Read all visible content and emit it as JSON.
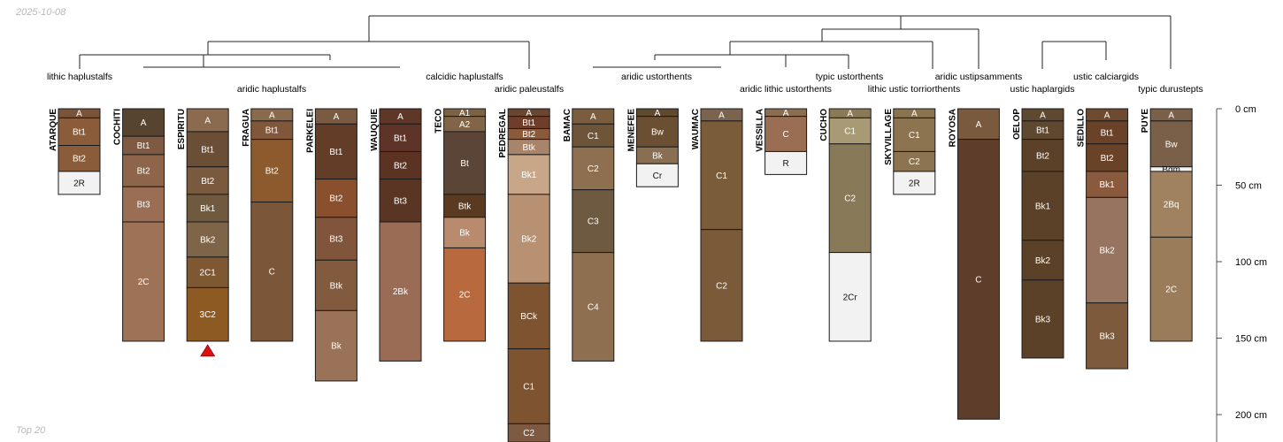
{
  "date_label": "2025-10-08",
  "footer_label": "Top 20",
  "chart_data": {
    "type": "soil-profile-sketch",
    "title": "",
    "depth_axis": {
      "unit": "cm",
      "range": [
        0,
        220
      ],
      "ticks": [
        {
          "value": 0,
          "label": "0 cm"
        },
        {
          "value": 50,
          "label": "50 cm"
        },
        {
          "value": 100,
          "label": "100 cm"
        },
        {
          "value": 150,
          "label": "150 cm"
        },
        {
          "value": 200,
          "label": "200 cm"
        }
      ]
    },
    "profiles": [
      {
        "name": "ATARQUE",
        "horizons": [
          {
            "name": "A",
            "top": 0,
            "bottom": 6,
            "color": "#7a5438"
          },
          {
            "name": "Bt1",
            "top": 6,
            "bottom": 24,
            "color": "#8a5c3a"
          },
          {
            "name": "Bt2",
            "top": 24,
            "bottom": 41,
            "color": "#8a5c3a"
          },
          {
            "name": "2R",
            "top": 41,
            "bottom": 56,
            "color": "#f2f2f2"
          }
        ]
      },
      {
        "name": "COCHITI",
        "horizons": [
          {
            "name": "A",
            "top": 0,
            "bottom": 18,
            "color": "#574430"
          },
          {
            "name": "Bt1",
            "top": 18,
            "bottom": 30,
            "color": "#7e5a43"
          },
          {
            "name": "Bt2",
            "top": 30,
            "bottom": 51,
            "color": "#8e654a"
          },
          {
            "name": "Bt3",
            "top": 51,
            "bottom": 74,
            "color": "#9a6e55"
          },
          {
            "name": "2C",
            "top": 74,
            "bottom": 152,
            "color": "#9d7256"
          }
        ]
      },
      {
        "name": "ESPIRITU",
        "marker": true,
        "horizons": [
          {
            "name": "A",
            "top": 0,
            "bottom": 15,
            "color": "#8a6b4f"
          },
          {
            "name": "Bt1",
            "top": 15,
            "bottom": 38,
            "color": "#6a4e35"
          },
          {
            "name": "Bt2",
            "top": 38,
            "bottom": 56,
            "color": "#7a5a3e"
          },
          {
            "name": "Bk1",
            "top": 56,
            "bottom": 74,
            "color": "#6f5a40"
          },
          {
            "name": "Bk2",
            "top": 74,
            "bottom": 97,
            "color": "#7e6549"
          },
          {
            "name": "2C1",
            "top": 97,
            "bottom": 117,
            "color": "#7e5833"
          },
          {
            "name": "3C2",
            "top": 117,
            "bottom": 152,
            "color": "#8e5a24"
          }
        ]
      },
      {
        "name": "FRAGUA",
        "horizons": [
          {
            "name": "A",
            "top": 0,
            "bottom": 8,
            "color": "#8a6a4c"
          },
          {
            "name": "Bt1",
            "top": 8,
            "bottom": 20,
            "color": "#80573a"
          },
          {
            "name": "Bt2",
            "top": 20,
            "bottom": 61,
            "color": "#8c5a2c"
          },
          {
            "name": "C",
            "top": 61,
            "bottom": 152,
            "color": "#7c5638"
          }
        ]
      },
      {
        "name": "PARKELEI",
        "horizons": [
          {
            "name": "A",
            "top": 0,
            "bottom": 10,
            "color": "#7a5a40"
          },
          {
            "name": "Bt1",
            "top": 10,
            "bottom": 46,
            "color": "#643d28"
          },
          {
            "name": "Bt2",
            "top": 46,
            "bottom": 71,
            "color": "#8a4f2c"
          },
          {
            "name": "Bt3",
            "top": 71,
            "bottom": 99,
            "color": "#80553b"
          },
          {
            "name": "Btk",
            "top": 99,
            "bottom": 132,
            "color": "#825b3f"
          },
          {
            "name": "Bk",
            "top": 132,
            "bottom": 178,
            "color": "#9a7257"
          }
        ]
      },
      {
        "name": "WAUQUIE",
        "horizons": [
          {
            "name": "A",
            "top": 0,
            "bottom": 10,
            "color": "#5e3728"
          },
          {
            "name": "Bt1",
            "top": 10,
            "bottom": 28,
            "color": "#5f3428"
          },
          {
            "name": "Bt2",
            "top": 28,
            "bottom": 46,
            "color": "#5c3322"
          },
          {
            "name": "Bt3",
            "top": 46,
            "bottom": 74,
            "color": "#5a3524"
          },
          {
            "name": "2Bk",
            "top": 74,
            "bottom": 165,
            "color": "#9a6c56"
          }
        ]
      },
      {
        "name": "TECO",
        "horizons": [
          {
            "name": "A1",
            "top": 0,
            "bottom": 5,
            "color": "#7c6245"
          },
          {
            "name": "A2",
            "top": 5,
            "bottom": 15,
            "color": "#826548"
          },
          {
            "name": "Bt",
            "top": 15,
            "bottom": 56,
            "color": "#5b4536"
          },
          {
            "name": "Btk",
            "top": 56,
            "bottom": 71,
            "color": "#5b3a22"
          },
          {
            "name": "Bk",
            "top": 71,
            "bottom": 91,
            "color": "#b88a6e"
          },
          {
            "name": "2C",
            "top": 91,
            "bottom": 152,
            "color": "#b86a3e"
          }
        ]
      },
      {
        "name": "PEDREGAL",
        "horizons": [
          {
            "name": "A",
            "top": 0,
            "bottom": 5,
            "color": "#6a4630"
          },
          {
            "name": "Bt1",
            "top": 5,
            "bottom": 13,
            "color": "#6e3e2a"
          },
          {
            "name": "Bt2",
            "top": 13,
            "bottom": 20,
            "color": "#8a5a3a"
          },
          {
            "name": "Btk",
            "top": 20,
            "bottom": 30,
            "color": "#a8846a"
          },
          {
            "name": "Bk1",
            "top": 30,
            "bottom": 56,
            "color": "#c8a688"
          },
          {
            "name": "Bk2",
            "top": 56,
            "bottom": 114,
            "color": "#b89072"
          },
          {
            "name": "BCk",
            "top": 114,
            "bottom": 157,
            "color": "#7e5330"
          },
          {
            "name": "C1",
            "top": 157,
            "bottom": 206,
            "color": "#7e5330"
          },
          {
            "name": "C2",
            "top": 206,
            "bottom": 220,
            "color": "#7e5a42"
          }
        ]
      },
      {
        "name": "BAMAC",
        "horizons": [
          {
            "name": "A",
            "top": 0,
            "bottom": 10,
            "color": "#7a5c3e"
          },
          {
            "name": "C1",
            "top": 10,
            "bottom": 25,
            "color": "#6e5438"
          },
          {
            "name": "C2",
            "top": 25,
            "bottom": 53,
            "color": "#8e7050"
          },
          {
            "name": "C3",
            "top": 53,
            "bottom": 94,
            "color": "#6e5a40"
          },
          {
            "name": "C4",
            "top": 94,
            "bottom": 165,
            "color": "#8e7050"
          }
        ]
      },
      {
        "name": "MENEFEE",
        "horizons": [
          {
            "name": "A",
            "top": 0,
            "bottom": 5,
            "color": "#5e4a30"
          },
          {
            "name": "Bw",
            "top": 5,
            "bottom": 25,
            "color": "#6a4f33"
          },
          {
            "name": "Bk",
            "top": 25,
            "bottom": 36,
            "color": "#8a6e52"
          },
          {
            "name": "Cr",
            "top": 36,
            "bottom": 51,
            "color": "#f2f2f2"
          }
        ]
      },
      {
        "name": "WAUMAC",
        "horizons": [
          {
            "name": "A",
            "top": 0,
            "bottom": 8,
            "color": "#7a6450"
          },
          {
            "name": "C1",
            "top": 8,
            "bottom": 79,
            "color": "#7a5c38"
          },
          {
            "name": "C2",
            "top": 79,
            "bottom": 152,
            "color": "#7a5a38"
          }
        ]
      },
      {
        "name": "VESSILLA",
        "horizons": [
          {
            "name": "A",
            "top": 0,
            "bottom": 5,
            "color": "#8a6e52"
          },
          {
            "name": "C",
            "top": 5,
            "bottom": 28,
            "color": "#9a6e52"
          },
          {
            "name": "R",
            "top": 28,
            "bottom": 43,
            "color": "#f2f2f2"
          }
        ]
      },
      {
        "name": "CUCHO",
        "horizons": [
          {
            "name": "A",
            "top": 0,
            "bottom": 6,
            "color": "#8a7a58"
          },
          {
            "name": "C1",
            "top": 6,
            "bottom": 23,
            "color": "#a89a74"
          },
          {
            "name": "C2",
            "top": 23,
            "bottom": 94,
            "color": "#887a58"
          },
          {
            "name": "2Cr",
            "top": 94,
            "bottom": 152,
            "color": "#f2f2f2"
          }
        ]
      },
      {
        "name": "SKYVILLAGE",
        "horizons": [
          {
            "name": "A",
            "top": 0,
            "bottom": 6,
            "color": "#8a7450"
          },
          {
            "name": "C1",
            "top": 6,
            "bottom": 28,
            "color": "#8c7450"
          },
          {
            "name": "C2",
            "top": 28,
            "bottom": 41,
            "color": "#8c7450"
          },
          {
            "name": "2R",
            "top": 41,
            "bottom": 56,
            "color": "#f2f2f2"
          }
        ]
      },
      {
        "name": "ROYOSA",
        "horizons": [
          {
            "name": "A",
            "top": 0,
            "bottom": 20,
            "color": "#7a5a3e"
          },
          {
            "name": "C",
            "top": 20,
            "bottom": 203,
            "color": "#5e3e2a"
          }
        ]
      },
      {
        "name": "OELOP",
        "horizons": [
          {
            "name": "A",
            "top": 0,
            "bottom": 8,
            "color": "#5e4830"
          },
          {
            "name": "Bt1",
            "top": 8,
            "bottom": 20,
            "color": "#5e4830"
          },
          {
            "name": "Bt2",
            "top": 20,
            "bottom": 41,
            "color": "#5a4128"
          },
          {
            "name": "Bk1",
            "top": 41,
            "bottom": 86,
            "color": "#5a4128"
          },
          {
            "name": "Bk2",
            "top": 86,
            "bottom": 112,
            "color": "#5a4128"
          },
          {
            "name": "Bk3",
            "top": 112,
            "bottom": 163,
            "color": "#5a4128"
          }
        ]
      },
      {
        "name": "SEDILLO",
        "horizons": [
          {
            "name": "A",
            "top": 0,
            "bottom": 8,
            "color": "#6e4a30"
          },
          {
            "name": "Bt1",
            "top": 8,
            "bottom": 23,
            "color": "#6a4228"
          },
          {
            "name": "Bt2",
            "top": 23,
            "bottom": 41,
            "color": "#6a4228"
          },
          {
            "name": "Bk1",
            "top": 41,
            "bottom": 58,
            "color": "#8a5a3e"
          },
          {
            "name": "Bk2",
            "top": 58,
            "bottom": 127,
            "color": "#967460"
          },
          {
            "name": "Bk3",
            "top": 127,
            "bottom": 170,
            "color": "#7e5a3c"
          }
        ]
      },
      {
        "name": "PUYE",
        "horizons": [
          {
            "name": "A",
            "top": 0,
            "bottom": 8,
            "color": "#7a6048"
          },
          {
            "name": "Bw",
            "top": 8,
            "bottom": 38,
            "color": "#7a6048"
          },
          {
            "name": "Bqm",
            "top": 38,
            "bottom": 41,
            "color": "#f2f2f2"
          },
          {
            "name": "2Bq",
            "top": 41,
            "bottom": 84,
            "color": "#a08260"
          },
          {
            "name": "2C",
            "top": 84,
            "bottom": 152,
            "color": "#9a7c5a"
          }
        ]
      }
    ],
    "dendrogram_labels": [
      "lithic haplustalfs",
      "aridic haplustalfs",
      "calcidic haplustalfs",
      "aridic paleustalfs",
      "aridic ustorthents",
      "aridic lithic ustorthents",
      "typic ustorthents",
      "lithic ustic torriorthents",
      "aridic ustipsamments",
      "ustic haplargids",
      "ustic calciargids",
      "typic durustepts"
    ]
  }
}
